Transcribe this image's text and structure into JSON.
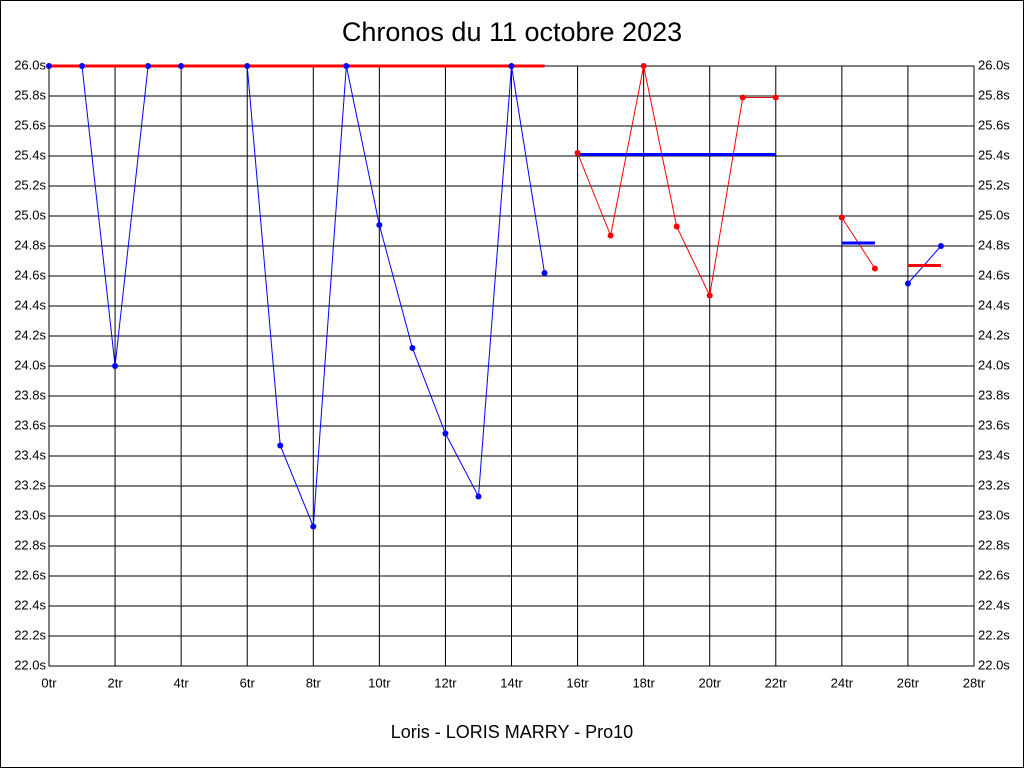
{
  "chart_data": {
    "type": "line",
    "title": "Chronos du 11 octobre 2023",
    "xlabel": "Loris - LORIS MARRY - Pro10",
    "x": [
      0,
      1,
      2,
      3,
      4,
      5,
      6,
      7,
      8,
      9,
      10,
      11,
      12,
      13,
      14,
      15,
      16,
      17,
      18,
      19,
      20,
      21,
      22,
      23,
      24,
      25,
      26,
      27
    ],
    "series": [
      {
        "color": "#0000ff",
        "values": [
          26.0,
          26.0,
          24.0,
          26.0,
          26.0,
          null,
          26.0,
          23.47,
          22.93,
          26.0,
          24.94,
          24.12,
          23.55,
          23.13,
          26.0,
          24.62,
          null,
          null,
          null,
          null,
          null,
          null,
          null,
          null,
          null,
          null,
          24.55,
          24.8
        ]
      },
      {
        "color": "#ff0000",
        "values": [
          null,
          null,
          null,
          null,
          null,
          null,
          null,
          null,
          null,
          null,
          null,
          null,
          null,
          null,
          null,
          null,
          25.42,
          24.87,
          26.0,
          24.93,
          24.47,
          25.79,
          25.79,
          null,
          24.99,
          24.65,
          null,
          null
        ]
      }
    ],
    "segments": [
      {
        "color": "#ff0000",
        "x": [
          0,
          15
        ],
        "values": [
          26.0,
          26.0
        ]
      },
      {
        "color": "#0000ff",
        "x": [
          16,
          22
        ],
        "values": [
          25.41,
          25.41
        ]
      },
      {
        "color": "#0000ff",
        "x": [
          24,
          25
        ],
        "values": [
          24.82,
          24.82
        ]
      },
      {
        "color": "#ff0000",
        "x": [
          26,
          27
        ],
        "values": [
          24.67,
          24.67
        ]
      }
    ],
    "xlim": [
      0,
      28
    ],
    "xticks": [
      {
        "value": 0,
        "label": "0tr"
      },
      {
        "value": 2,
        "label": "2tr"
      },
      {
        "value": 4,
        "label": "4tr"
      },
      {
        "value": 6,
        "label": "6tr"
      },
      {
        "value": 8,
        "label": "8tr"
      },
      {
        "value": 10,
        "label": "10tr"
      },
      {
        "value": 12,
        "label": "12tr"
      },
      {
        "value": 14,
        "label": "14tr"
      },
      {
        "value": 16,
        "label": "16tr"
      },
      {
        "value": 18,
        "label": "18tr"
      },
      {
        "value": 20,
        "label": "20tr"
      },
      {
        "value": 22,
        "label": "22tr"
      },
      {
        "value": 24,
        "label": "24tr"
      },
      {
        "value": 26,
        "label": "26tr"
      },
      {
        "value": 28,
        "label": "28tr"
      }
    ],
    "ylim": [
      22.0,
      26.0
    ],
    "yticks": [
      {
        "value": 22.0,
        "label": "22.0s"
      },
      {
        "value": 22.2,
        "label": "22.2s"
      },
      {
        "value": 22.4,
        "label": "22.4s"
      },
      {
        "value": 22.6,
        "label": "22.6s"
      },
      {
        "value": 22.8,
        "label": "22.8s"
      },
      {
        "value": 23.0,
        "label": "23.0s"
      },
      {
        "value": 23.2,
        "label": "23.2s"
      },
      {
        "value": 23.4,
        "label": "23.4s"
      },
      {
        "value": 23.6,
        "label": "23.6s"
      },
      {
        "value": 23.8,
        "label": "23.8s"
      },
      {
        "value": 24.0,
        "label": "24.0s"
      },
      {
        "value": 24.2,
        "label": "24.2s"
      },
      {
        "value": 24.4,
        "label": "24.4s"
      },
      {
        "value": 24.6,
        "label": "24.6s"
      },
      {
        "value": 24.8,
        "label": "24.8s"
      },
      {
        "value": 25.0,
        "label": "25.0s"
      },
      {
        "value": 25.2,
        "label": "25.2s"
      },
      {
        "value": 25.4,
        "label": "25.4s"
      },
      {
        "value": 25.6,
        "label": "25.6s"
      },
      {
        "value": 25.8,
        "label": "25.8s"
      },
      {
        "value": 26.0,
        "label": "26.0s"
      }
    ],
    "grid": true
  }
}
